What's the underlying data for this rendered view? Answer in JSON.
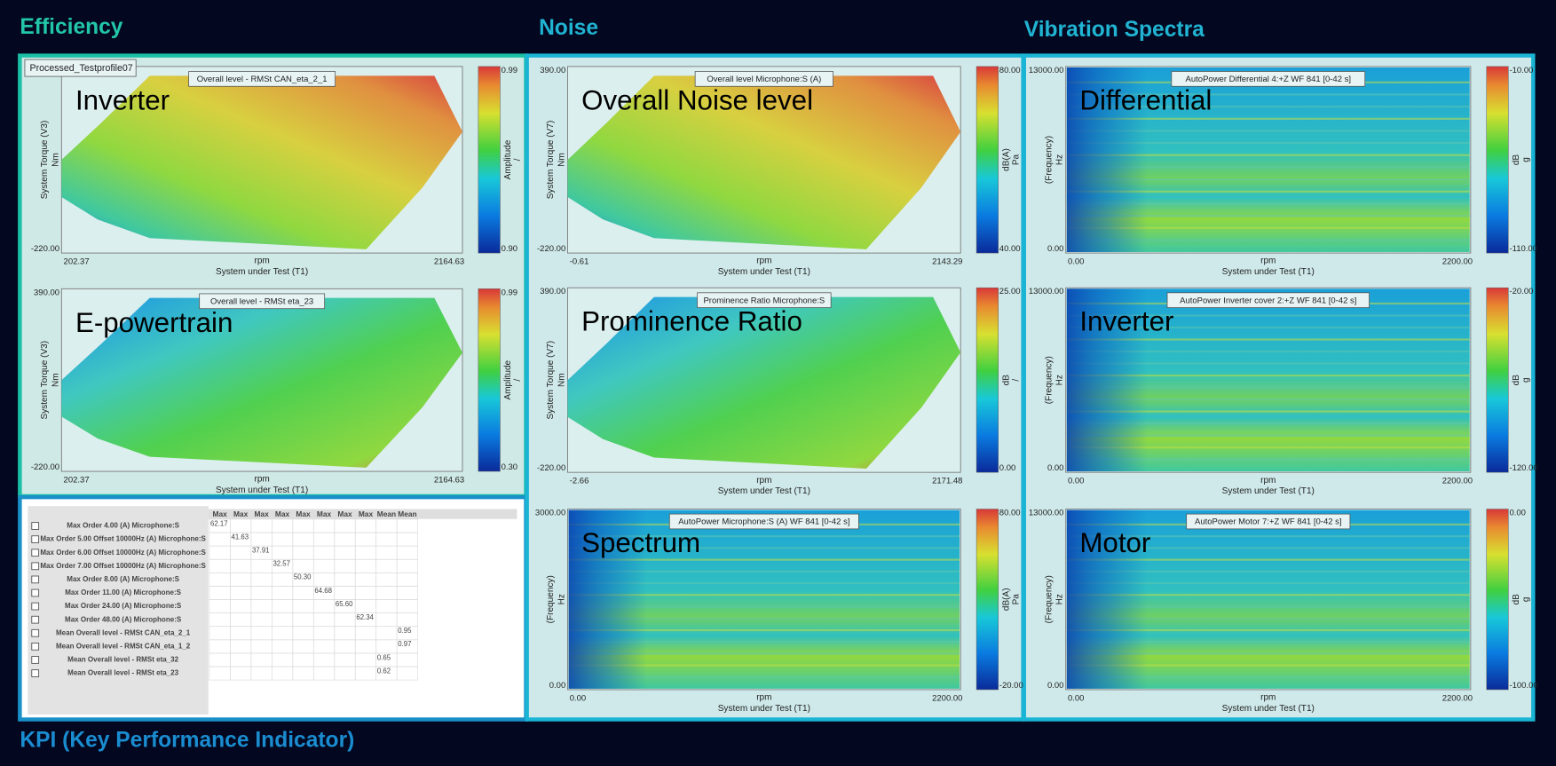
{
  "sections": {
    "efficiency": "Efficiency",
    "noise": "Noise",
    "vibration": "Vibration Spectra",
    "kpi": "KPI (Key Performance Indicator)"
  },
  "profile_label": "Processed_Testprofile07",
  "plots": [
    {
      "title": "Inverter",
      "legend": "Overall level - RMSt CAN_eta_2_1",
      "y_label": "System Torque (V3)",
      "y_unit": "Nm",
      "x_unit": "rpm",
      "x_label": "System under Test (T1)",
      "y_ticks": [
        "-220.00"
      ],
      "x_ticks": [
        "202.37",
        "2164.63"
      ],
      "colorbar_ticks": [
        "0.99",
        "0.90"
      ],
      "colorbar_label": "Amplitude",
      "colorbar_unit": "/"
    },
    {
      "title": "E-powertrain",
      "legend": "Overall level - RMSt eta_23",
      "y_label": "System Torque (V3)",
      "y_unit": "Nm",
      "x_unit": "rpm",
      "x_label": "System under Test (T1)",
      "y_ticks": [
        "390.00",
        "-220.00"
      ],
      "x_ticks": [
        "202.37",
        "2164.63"
      ],
      "colorbar_ticks": [
        "0.99",
        "0.30"
      ],
      "colorbar_label": "Amplitude",
      "colorbar_unit": "/"
    },
    {
      "title": "Overall Noise level",
      "legend": "Overall level Microphone:S (A)",
      "y_label": "System Torque (V7)",
      "y_unit": "Nm",
      "x_unit": "rpm",
      "x_label": "System under Test (T1)",
      "y_ticks": [
        "390.00",
        "-220.00"
      ],
      "x_ticks": [
        "-0.61",
        "2143.29"
      ],
      "colorbar_ticks": [
        "80.00",
        "40.00"
      ],
      "colorbar_label": "dB(A)",
      "colorbar_unit": "Pa"
    },
    {
      "title": "Prominence Ratio",
      "legend": "Prominence Ratio Microphone:S",
      "y_label": "System Torque (V7)",
      "y_unit": "Nm",
      "x_unit": "rpm",
      "x_label": "System under Test (T1)",
      "y_ticks": [
        "390.00",
        "-220.00"
      ],
      "x_ticks": [
        "-2.66",
        "2171.48"
      ],
      "colorbar_ticks": [
        "25.00",
        "0.00"
      ],
      "colorbar_label": "dB",
      "colorbar_unit": "/"
    },
    {
      "title": "Spectrum",
      "legend": "AutoPower Microphone:S (A) WF 841 [0-42 s]",
      "y_label": "(Frequency)",
      "y_unit": "Hz",
      "x_unit": "rpm",
      "x_label": "System under Test (T1)",
      "y_ticks": [
        "3000.00",
        "0.00"
      ],
      "x_ticks": [
        "0.00",
        "2200.00"
      ],
      "colorbar_ticks": [
        "80.00",
        "-20.00"
      ],
      "colorbar_label": "dB(A)",
      "colorbar_unit": "Pa"
    },
    {
      "title": "Differential",
      "legend": "AutoPower Differential 4:+Z WF 841 [0-42 s]",
      "y_label": "(Frequency)",
      "y_unit": "Hz",
      "x_unit": "rpm",
      "x_label": "System under Test (T1)",
      "y_ticks": [
        "13000.00",
        "0.00"
      ],
      "x_ticks": [
        "0.00",
        "2200.00"
      ],
      "colorbar_ticks": [
        "-10.00",
        "-110.00"
      ],
      "colorbar_label": "dB",
      "colorbar_unit": "g"
    },
    {
      "title": "Inverter",
      "legend": "AutoPower Inverter cover 2:+Z WF 841 [0-42 s]",
      "y_label": "(Frequency)",
      "y_unit": "Hz",
      "x_unit": "rpm",
      "x_label": "System under Test (T1)",
      "y_ticks": [
        "13000.00",
        "0.00"
      ],
      "x_ticks": [
        "0.00",
        "2200.00"
      ],
      "colorbar_ticks": [
        "-20.00",
        "-120.00"
      ],
      "colorbar_label": "dB",
      "colorbar_unit": "g"
    },
    {
      "title": "Motor",
      "legend": "AutoPower Motor 7:+Z WF 841 [0-42 s]",
      "y_label": "(Frequency)",
      "y_unit": "Hz",
      "x_unit": "rpm",
      "x_label": "System under Test (T1)",
      "y_ticks": [
        "13000.00",
        "0.00"
      ],
      "x_ticks": [
        "0.00",
        "2200.00"
      ],
      "colorbar_ticks": [
        "0.00",
        "-100.00"
      ],
      "colorbar_label": "dB",
      "colorbar_unit": "g"
    }
  ],
  "kpi_table": {
    "headers": [
      "Max",
      "Max",
      "Max",
      "Max",
      "Max",
      "Max",
      "Max",
      "Max",
      "Mean",
      "Mean"
    ],
    "rows": [
      {
        "label": "Max Order 4.00 (A) Microphone:S",
        "cells": [
          "62.17",
          null,
          null,
          null,
          null,
          null,
          null,
          null,
          null,
          null
        ]
      },
      {
        "label": "Max Order 5.00 Offset 10000Hz (A) Microphone:S",
        "cells": [
          null,
          "41.63",
          null,
          null,
          null,
          null,
          null,
          null,
          null,
          null
        ]
      },
      {
        "label": "Max Order 6.00 Offset 10000Hz (A) Microphone:S",
        "cells": [
          null,
          null,
          "37.91",
          null,
          null,
          null,
          null,
          null,
          null,
          null
        ]
      },
      {
        "label": "Max Order 7.00 Offset 10000Hz (A) Microphone:S",
        "cells": [
          null,
          null,
          null,
          "32.57",
          null,
          null,
          null,
          null,
          null,
          null
        ]
      },
      {
        "label": "Max Order 8.00 (A) Microphone:S",
        "cells": [
          null,
          null,
          null,
          null,
          "50.30",
          null,
          null,
          null,
          null,
          null
        ]
      },
      {
        "label": "Max Order 11.00 (A) Microphone:S",
        "cells": [
          null,
          null,
          null,
          null,
          null,
          "64.68",
          null,
          null,
          null,
          null
        ]
      },
      {
        "label": "Max Order 24.00 (A) Microphone:S",
        "cells": [
          null,
          null,
          null,
          null,
          null,
          null,
          "65.60",
          null,
          null,
          null
        ]
      },
      {
        "label": "Max Order 48.00 (A) Microphone:S",
        "cells": [
          null,
          null,
          null,
          null,
          null,
          null,
          null,
          "62.34",
          null,
          null
        ]
      },
      {
        "label": "Mean Overall level - RMSt CAN_eta_2_1",
        "cells": [
          null,
          null,
          null,
          null,
          null,
          null,
          null,
          null,
          null,
          "0.95"
        ]
      },
      {
        "label": "Mean Overall level - RMSt CAN_eta_1_2",
        "cells": [
          null,
          null,
          null,
          null,
          null,
          null,
          null,
          null,
          null,
          "0.97"
        ]
      },
      {
        "label": "Mean Overall level - RMSt eta_32",
        "cells": [
          null,
          null,
          null,
          null,
          null,
          null,
          null,
          null,
          "0.65",
          null
        ]
      },
      {
        "label": "Mean Overall level - RMSt eta_23",
        "cells": [
          null,
          null,
          null,
          null,
          null,
          null,
          null,
          null,
          "0.62",
          null
        ]
      }
    ]
  }
}
